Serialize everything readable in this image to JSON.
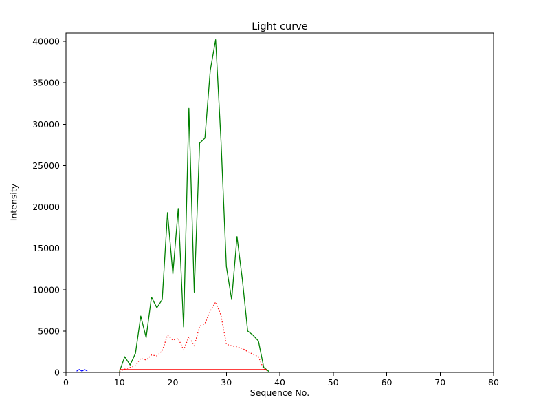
{
  "figure": {
    "title": "Light curve",
    "xlabel": "Sequence No.",
    "ylabel": "Intensity"
  },
  "colors": {
    "background": "#ffffff",
    "axis": "#000000",
    "green_series": "#008000",
    "red_series": "#ff0000",
    "blue_series": "#0000ff"
  },
  "chart_data": {
    "type": "line",
    "title": "Light curve",
    "xlabel": "Sequence No.",
    "ylabel": "Intensity",
    "xlim": [
      0,
      80
    ],
    "ylim": [
      0,
      41000
    ],
    "xticks": [
      0,
      10,
      20,
      30,
      40,
      50,
      60,
      70,
      80
    ],
    "yticks": [
      0,
      5000,
      10000,
      15000,
      20000,
      25000,
      30000,
      35000,
      40000
    ],
    "grid": false,
    "legend": null,
    "series": [
      {
        "name": "green-solid-curve",
        "color": "#008000",
        "style": "solid",
        "width": 1.3,
        "x": [
          10,
          11,
          12,
          13,
          14,
          15,
          16,
          17,
          18,
          19,
          20,
          21,
          22,
          23,
          24,
          25,
          26,
          27,
          28,
          29,
          30,
          31,
          32,
          33,
          34,
          35,
          36,
          37,
          38
        ],
        "y": [
          100,
          1900,
          900,
          2300,
          6800,
          4200,
          9100,
          7800,
          8800,
          19300,
          11900,
          19800,
          5500,
          31900,
          9700,
          27700,
          28300,
          36500,
          40200,
          28000,
          12800,
          8800,
          16400,
          11200,
          5000,
          4500,
          3800,
          600,
          100
        ]
      },
      {
        "name": "red-dotted-curve",
        "color": "#ff0000",
        "style": "dotted",
        "width": 1.2,
        "x": [
          10,
          11,
          12,
          13,
          14,
          15,
          16,
          17,
          18,
          19,
          20,
          21,
          22,
          23,
          24,
          25,
          26,
          27,
          28,
          29,
          30,
          31,
          32,
          33,
          34,
          35,
          36,
          37,
          38
        ],
        "y": [
          100,
          400,
          600,
          800,
          1700,
          1500,
          2100,
          2000,
          2600,
          4500,
          3900,
          4100,
          2700,
          4300,
          3200,
          5600,
          5900,
          7400,
          8500,
          6900,
          3400,
          3200,
          3100,
          2900,
          2500,
          2200,
          1900,
          400,
          100
        ]
      },
      {
        "name": "red-flat-baseline",
        "color": "#ff0000",
        "style": "solid",
        "width": 1.2,
        "x": [
          10,
          37.5
        ],
        "y": [
          350,
          350
        ]
      },
      {
        "name": "blue-short-segment",
        "color": "#0000ff",
        "style": "solid",
        "width": 1.2,
        "x": [
          2,
          2.5,
          3,
          3.5,
          4
        ],
        "y": [
          150,
          350,
          150,
          350,
          150
        ]
      }
    ]
  }
}
